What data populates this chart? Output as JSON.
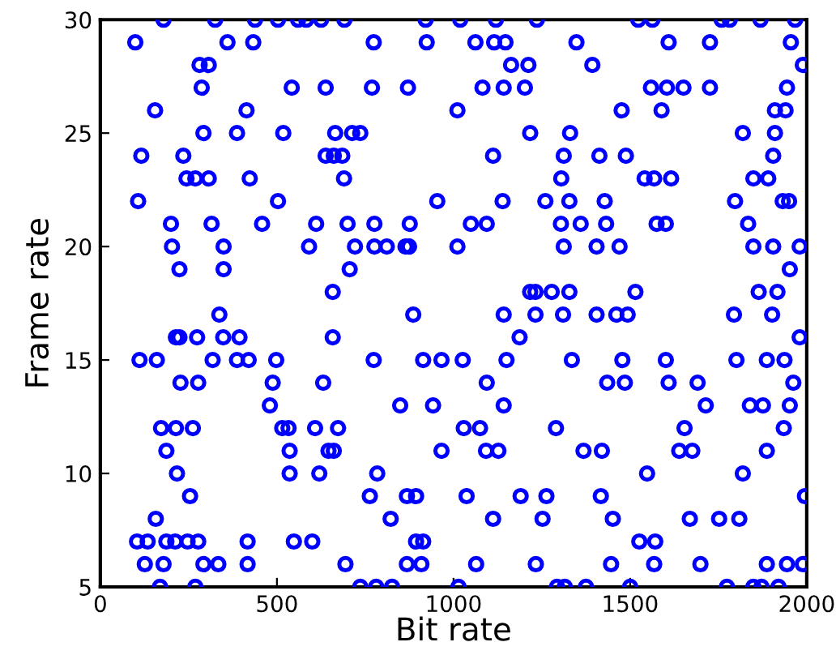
{
  "chart_data": {
    "type": "scatter",
    "xlabel": "Bit rate",
    "ylabel": "Frame rate",
    "xlim": [
      0,
      2000
    ],
    "ylim": [
      5,
      30
    ],
    "xticks": [
      0,
      500,
      1000,
      1500,
      2000
    ],
    "yticks": [
      5,
      10,
      15,
      20,
      25,
      30
    ],
    "grid": false,
    "legend": false,
    "marker": "circle",
    "series": [
      {
        "color": "#0000ff",
        "x": [
          179,
          325,
          438,
          503,
          560,
          583,
          625,
          691,
          921,
          1019,
          1120,
          1236,
          1523,
          1563,
          1759,
          1782,
          1869,
          1967,
          99,
          360,
          433,
          774,
          924,
          1062,
          1115,
          1147,
          1348,
          1609,
          1726,
          1955,
          281,
          307,
          1163,
          1212,
          1393,
          1989,
          287,
          542,
          638,
          769,
          871,
          1082,
          1142,
          1202,
          1559,
          1604,
          1651,
          1726,
          1944,
          155,
          414,
          1011,
          1476,
          1589,
          1910,
          1940,
          292,
          387,
          518,
          665,
          713,
          736,
          1217,
          1330,
          1819,
          1910,
          116,
          235,
          638,
          661,
          685,
          1112,
          1312,
          1413,
          1488,
          1905,
          244,
          269,
          307,
          423,
          690,
          1305,
          1541,
          1568,
          1616,
          1849,
          1891,
          107,
          503,
          954,
          1139,
          1260,
          1328,
          1428,
          1797,
          1932,
          1950,
          200,
          315,
          458,
          611,
          700,
          776,
          876,
          1049,
          1094,
          1304,
          1360,
          1432,
          1575,
          1601,
          1834,
          203,
          349,
          591,
          721,
          776,
          811,
          864,
          874,
          1011,
          1312,
          1405,
          1470,
          1849,
          1905,
          1980,
          224,
          349,
          706,
          1952,
          658,
          1217,
          1232,
          1278,
          1328,
          1515,
          1864,
          1917,
          337,
          886,
          1142,
          1232,
          1310,
          1405,
          1461,
          1493,
          1794,
          1902,
          214,
          224,
          274,
          348,
          394,
          658,
          1187,
          1980,
          111,
          160,
          318,
          387,
          420,
          498,
          774,
          914,
          966,
          1026,
          1150,
          1335,
          1478,
          1601,
          1801,
          1887,
          1937,
          227,
          277,
          488,
          631,
          1094,
          1435,
          1485,
          1609,
          1691,
          1962,
          480,
          849,
          942,
          1142,
          1714,
          1839,
          1876,
          1952,
          172,
          214,
          262,
          515,
          533,
          608,
          673,
          1029,
          1075,
          1290,
          1654,
          1935,
          187,
          536,
          646,
          661,
          966,
          1092,
          1127,
          1368,
          1420,
          1639,
          1676,
          1887,
          217,
          536,
          620,
          784,
          1548,
          1819,
          254,
          763,
          868,
          894,
          1037,
          1190,
          1263,
          1417,
          1995,
          157,
          822,
          1112,
          1252,
          1451,
          1669,
          1752,
          1809,
          104,
          134,
          187,
          212,
          247,
          277,
          417,
          548,
          600,
          894,
          914,
          1526,
          1571,
          126,
          179,
          292,
          334,
          417,
          694,
          868,
          909,
          1064,
          1233,
          1446,
          1568,
          1699,
          1887,
          1944,
          1989,
          169,
          269,
          736,
          781,
          826,
          1014,
          1293,
          1315,
          1375,
          1500,
          1774,
          1849,
          1872,
          1920
        ],
        "values": [
          30,
          30,
          30,
          30,
          30,
          30,
          30,
          30,
          30,
          30,
          30,
          30,
          30,
          30,
          30,
          30,
          30,
          30,
          29,
          29,
          29,
          29,
          29,
          29,
          29,
          29,
          29,
          29,
          29,
          29,
          28,
          28,
          28,
          28,
          28,
          28,
          27,
          27,
          27,
          27,
          27,
          27,
          27,
          27,
          27,
          27,
          27,
          27,
          27,
          26,
          26,
          26,
          26,
          26,
          26,
          26,
          25,
          25,
          25,
          25,
          25,
          25,
          25,
          25,
          25,
          25,
          24,
          24,
          24,
          24,
          24,
          24,
          24,
          24,
          24,
          24,
          23,
          23,
          23,
          23,
          23,
          23,
          23,
          23,
          23,
          23,
          23,
          22,
          22,
          22,
          22,
          22,
          22,
          22,
          22,
          22,
          22,
          21,
          21,
          21,
          21,
          21,
          21,
          21,
          21,
          21,
          21,
          21,
          21,
          21,
          21,
          21,
          20,
          20,
          20,
          20,
          20,
          20,
          20,
          20,
          20,
          20,
          20,
          20,
          20,
          20,
          20,
          19,
          19,
          19,
          19,
          18,
          18,
          18,
          18,
          18,
          18,
          18,
          18,
          17,
          17,
          17,
          17,
          17,
          17,
          17,
          17,
          17,
          17,
          16,
          16,
          16,
          16,
          16,
          16,
          16,
          16,
          15,
          15,
          15,
          15,
          15,
          15,
          15,
          15,
          15,
          15,
          15,
          15,
          15,
          15,
          15,
          15,
          15,
          14,
          14,
          14,
          14,
          14,
          14,
          14,
          14,
          14,
          14,
          13,
          13,
          13,
          13,
          13,
          13,
          13,
          13,
          12,
          12,
          12,
          12,
          12,
          12,
          12,
          12,
          12,
          12,
          12,
          12,
          11,
          11,
          11,
          11,
          11,
          11,
          11,
          11,
          11,
          11,
          11,
          11,
          10,
          10,
          10,
          10,
          10,
          10,
          9,
          9,
          9,
          9,
          9,
          9,
          9,
          9,
          9,
          8,
          8,
          8,
          8,
          8,
          8,
          8,
          8,
          7,
          7,
          7,
          7,
          7,
          7,
          7,
          7,
          7,
          7,
          7,
          7,
          7,
          6,
          6,
          6,
          6,
          6,
          6,
          6,
          6,
          6,
          6,
          6,
          6,
          6,
          6,
          6,
          6,
          5,
          5,
          5,
          5,
          5,
          5,
          5,
          5,
          5,
          5,
          5,
          5,
          5,
          5
        ]
      }
    ]
  }
}
